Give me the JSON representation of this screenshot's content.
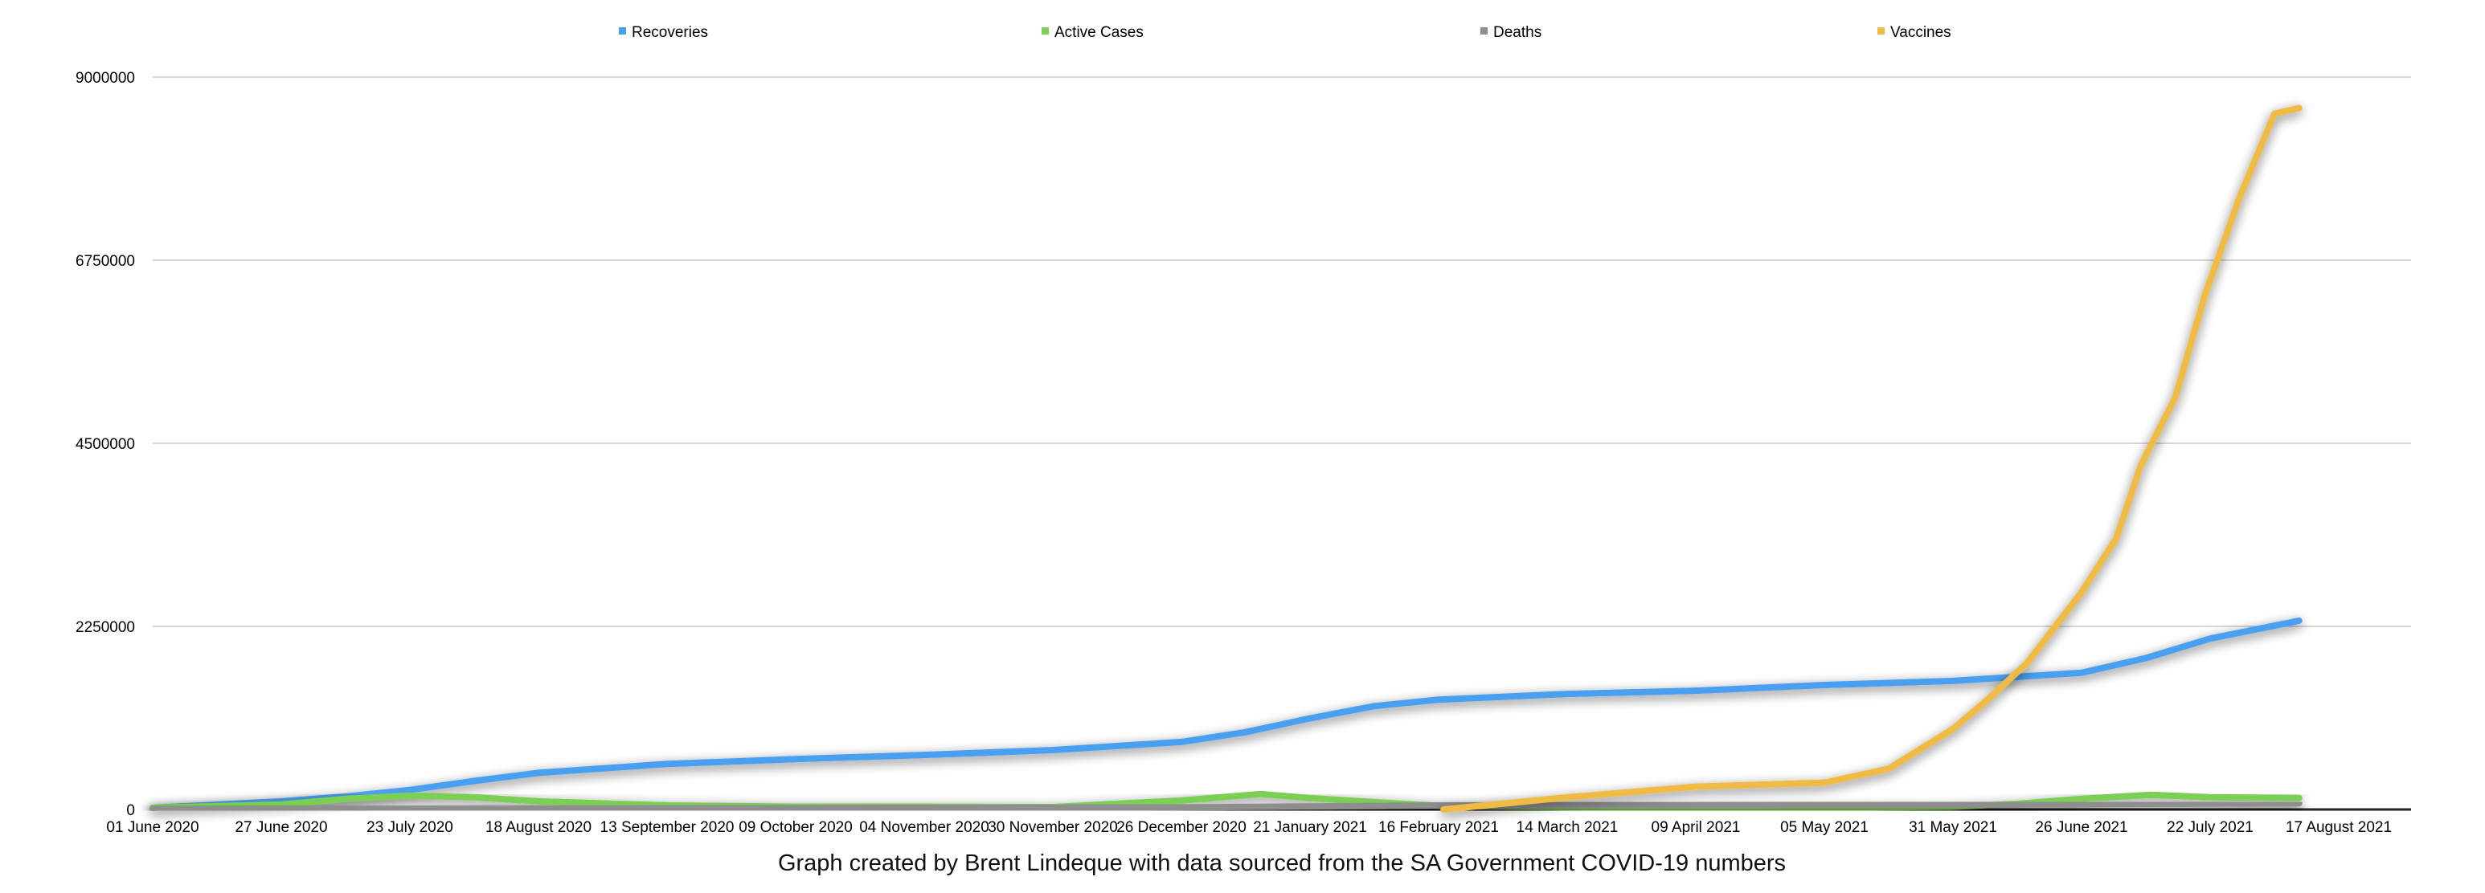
{
  "chart_data": {
    "type": "line",
    "title": "",
    "caption": "Graph created by Brent Lindeque with data sourced from the SA Government COVID-19 numbers",
    "xlabel": "",
    "ylabel": "",
    "x_start": "2020-06-01",
    "x_end": "2021-08-17",
    "ylim": [
      0,
      9000000
    ],
    "yticks": [
      "0",
      "2250000",
      "4500000",
      "6750000",
      "9000000"
    ],
    "ytick_values": [
      0,
      2250000,
      4500000,
      6750000,
      9000000
    ],
    "xticks": [
      "01 June 2020",
      "27 June 2020",
      "23 July 2020",
      "18 August 2020",
      "13 September 2020",
      "09 October 2020",
      "04 November 2020",
      "30 November 2020",
      "26 December 2020",
      "21 January 2021",
      "16 February 2021",
      "14 March 2021",
      "09 April 2021",
      "05 May 2021",
      "31 May 2021",
      "26 June 2021",
      "22 July 2021",
      "17 August 2021"
    ],
    "grid": true,
    "legend_position": "top",
    "series": [
      {
        "name": "Recoveries",
        "color": "#4a9ff0",
        "points": [
          [
            "2020-06-01",
            20000
          ],
          [
            "2020-06-27",
            100000
          ],
          [
            "2020-07-10",
            160000
          ],
          [
            "2020-07-23",
            240000
          ],
          [
            "2020-08-05",
            350000
          ],
          [
            "2020-08-18",
            450000
          ],
          [
            "2020-09-13",
            560000
          ],
          [
            "2020-10-09",
            620000
          ],
          [
            "2020-11-04",
            670000
          ],
          [
            "2020-11-30",
            730000
          ],
          [
            "2020-12-26",
            830000
          ],
          [
            "2021-01-08",
            950000
          ],
          [
            "2021-01-21",
            1120000
          ],
          [
            "2021-02-03",
            1270000
          ],
          [
            "2021-02-16",
            1350000
          ],
          [
            "2021-03-14",
            1420000
          ],
          [
            "2021-04-09",
            1460000
          ],
          [
            "2021-05-05",
            1530000
          ],
          [
            "2021-05-31",
            1580000
          ],
          [
            "2021-06-26",
            1680000
          ],
          [
            "2021-07-09",
            1860000
          ],
          [
            "2021-07-22",
            2100000
          ],
          [
            "2021-08-09",
            2320000
          ]
        ]
      },
      {
        "name": "Active Cases",
        "color": "#7ccf55",
        "points": [
          [
            "2020-06-01",
            20000
          ],
          [
            "2020-06-27",
            60000
          ],
          [
            "2020-07-10",
            130000
          ],
          [
            "2020-07-23",
            170000
          ],
          [
            "2020-08-05",
            150000
          ],
          [
            "2020-08-18",
            100000
          ],
          [
            "2020-09-13",
            50000
          ],
          [
            "2020-10-09",
            35000
          ],
          [
            "2020-11-04",
            35000
          ],
          [
            "2020-11-30",
            30000
          ],
          [
            "2020-12-13",
            70000
          ],
          [
            "2020-12-26",
            110000
          ],
          [
            "2021-01-11",
            190000
          ],
          [
            "2021-01-21",
            140000
          ],
          [
            "2021-02-03",
            90000
          ],
          [
            "2021-02-16",
            45000
          ],
          [
            "2021-03-14",
            25000
          ],
          [
            "2021-04-09",
            20000
          ],
          [
            "2021-05-05",
            20000
          ],
          [
            "2021-05-31",
            35000
          ],
          [
            "2021-06-13",
            70000
          ],
          [
            "2021-06-26",
            130000
          ],
          [
            "2021-07-10",
            180000
          ],
          [
            "2021-07-22",
            150000
          ],
          [
            "2021-08-09",
            140000
          ]
        ]
      },
      {
        "name": "Deaths",
        "color": "#8e8e8e",
        "points": [
          [
            "2020-06-01",
            1000
          ],
          [
            "2020-08-18",
            12000
          ],
          [
            "2020-12-26",
            26000
          ],
          [
            "2021-02-16",
            49000
          ],
          [
            "2021-05-31",
            57000
          ],
          [
            "2021-08-09",
            78000
          ]
        ]
      },
      {
        "name": "Vaccines",
        "color": "#efbb44",
        "points": [
          [
            "2021-02-17",
            0
          ],
          [
            "2021-03-14",
            150000
          ],
          [
            "2021-04-09",
            280000
          ],
          [
            "2021-05-05",
            330000
          ],
          [
            "2021-05-18",
            500000
          ],
          [
            "2021-05-31",
            990000
          ],
          [
            "2021-06-07",
            1350000
          ],
          [
            "2021-06-15",
            1800000
          ],
          [
            "2021-06-26",
            2670000
          ],
          [
            "2021-07-03",
            3330000
          ],
          [
            "2021-07-08",
            4230000
          ],
          [
            "2021-07-15",
            5070000
          ],
          [
            "2021-07-21",
            6330000
          ],
          [
            "2021-07-28",
            7530000
          ],
          [
            "2021-08-04",
            8550000
          ],
          [
            "2021-08-09",
            8620000
          ]
        ]
      }
    ]
  }
}
